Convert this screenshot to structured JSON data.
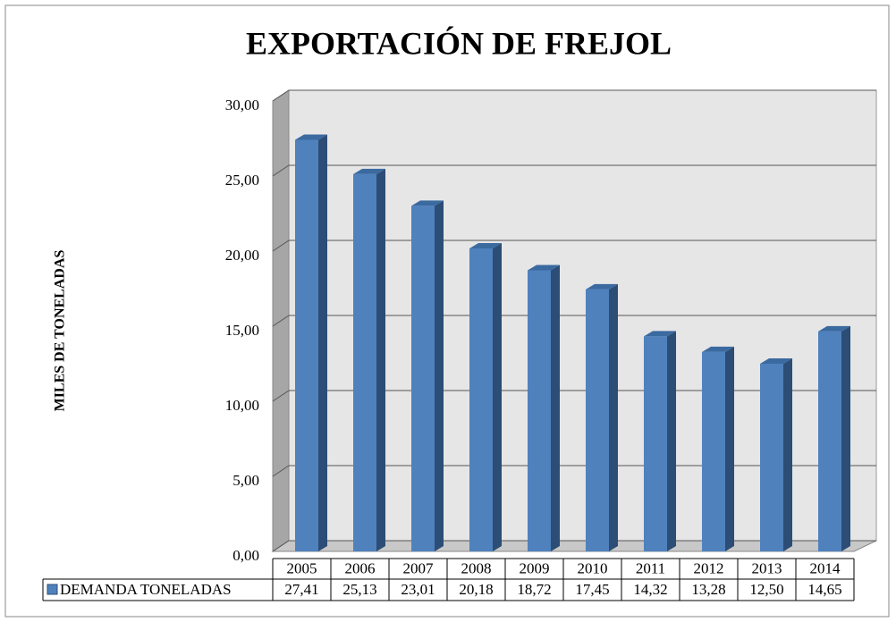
{
  "chart_data": {
    "type": "bar",
    "title": "EXPORTACIÓN DE FREJOL",
    "y_label": "MILES DE TONELADAS",
    "categories": [
      "2005",
      "2006",
      "2007",
      "2008",
      "2009",
      "2010",
      "2011",
      "2012",
      "2013",
      "2014"
    ],
    "series": [
      {
        "name": "DEMANDA TONELADAS",
        "color": "#4f81bd",
        "values": [
          27.41,
          25.13,
          23.01,
          20.18,
          18.72,
          17.45,
          14.32,
          13.28,
          12.5,
          14.65
        ],
        "value_labels": [
          "27,41",
          "25,13",
          "23,01",
          "20,18",
          "18,72",
          "17,45",
          "14,32",
          "13,28",
          "12,50",
          "14,65"
        ]
      }
    ],
    "ylim": [
      0,
      30
    ],
    "yticks": [
      {
        "value": 0,
        "label": "0,00"
      },
      {
        "value": 5,
        "label": "5,00"
      },
      {
        "value": 10,
        "label": "10,00"
      },
      {
        "value": 15,
        "label": "15,00"
      },
      {
        "value": 20,
        "label": "20,00"
      },
      {
        "value": 25,
        "label": "25,00"
      },
      {
        "value": 30,
        "label": "30,00"
      }
    ],
    "grid": true
  }
}
